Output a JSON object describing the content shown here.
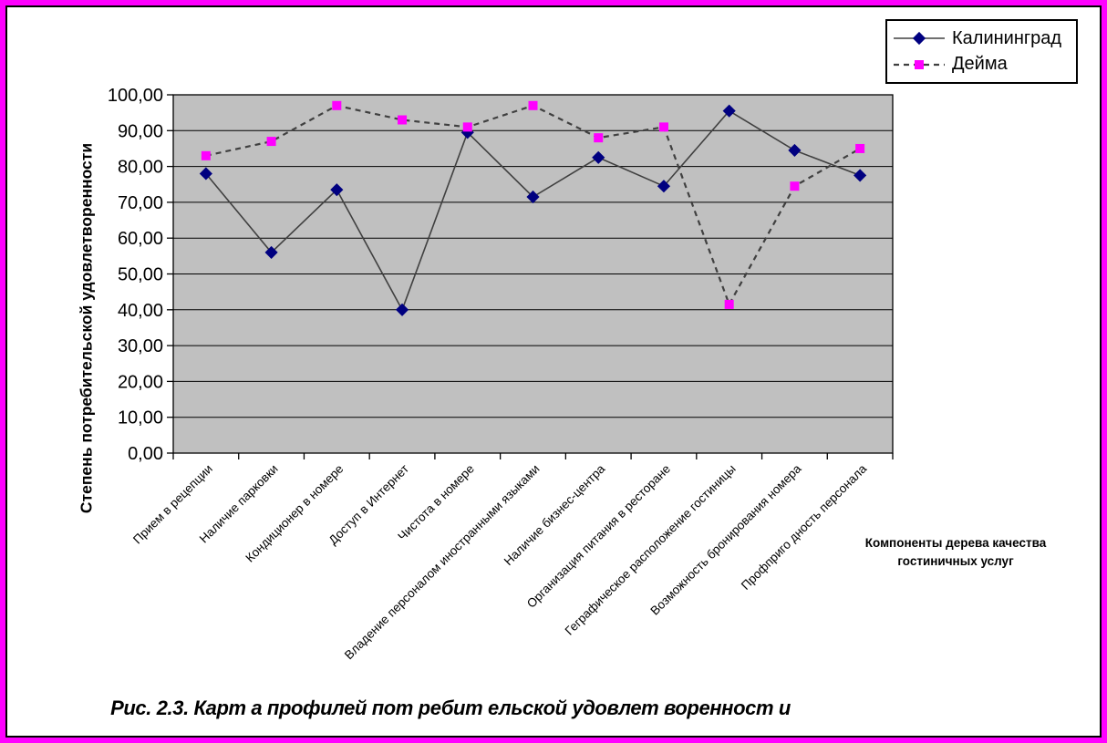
{
  "frame": {
    "border_color": "#FF00FF"
  },
  "caption": "Рис. 2.3. Карт а профилей пот ребит ельской удовлет воренност и",
  "chart_data": {
    "type": "line",
    "title": "",
    "categories": [
      "Прием в рецепции",
      "Наличие парковки",
      "Кондиционер в номере",
      "Доступ в Интернет",
      "Чистота в номере",
      "Владение персоналом иностранными языками",
      "Наличие бизнес-центра",
      "Организация питания в ресторане",
      "Геграфическое расположение гостиницы",
      "Возможность бронирования номера",
      "Профприго дность персонала"
    ],
    "series": [
      {
        "name": "Калининград",
        "values": [
          78,
          56,
          73.5,
          40,
          89.5,
          71.5,
          82.5,
          74.5,
          95.5,
          84.5,
          77.5
        ],
        "marker": "diamond",
        "marker_color": "#000080",
        "line_color": "#404040",
        "line_style": "solid"
      },
      {
        "name": "Дейма",
        "values": [
          83,
          87,
          97,
          93,
          91,
          97,
          88,
          91,
          41.5,
          74.5,
          85
        ],
        "marker": "square",
        "marker_color": "#FF00FF",
        "line_color": "#404040",
        "line_style": "dashed"
      }
    ],
    "xlabel_lines": [
      "Компоненты дерева качества",
      "гостиничных услуг"
    ],
    "ylabel": "Степень потребительской удовлетворенности",
    "ylim": [
      0,
      100
    ],
    "ytick_step": 10,
    "ytick_labels": [
      "0,00",
      "10,00",
      "20,00",
      "30,00",
      "40,00",
      "50,00",
      "60,00",
      "70,00",
      "80,00",
      "90,00",
      "100,00"
    ],
    "grid": true,
    "plot_bg": "#C0C0C0",
    "legend_position": "top-right"
  }
}
